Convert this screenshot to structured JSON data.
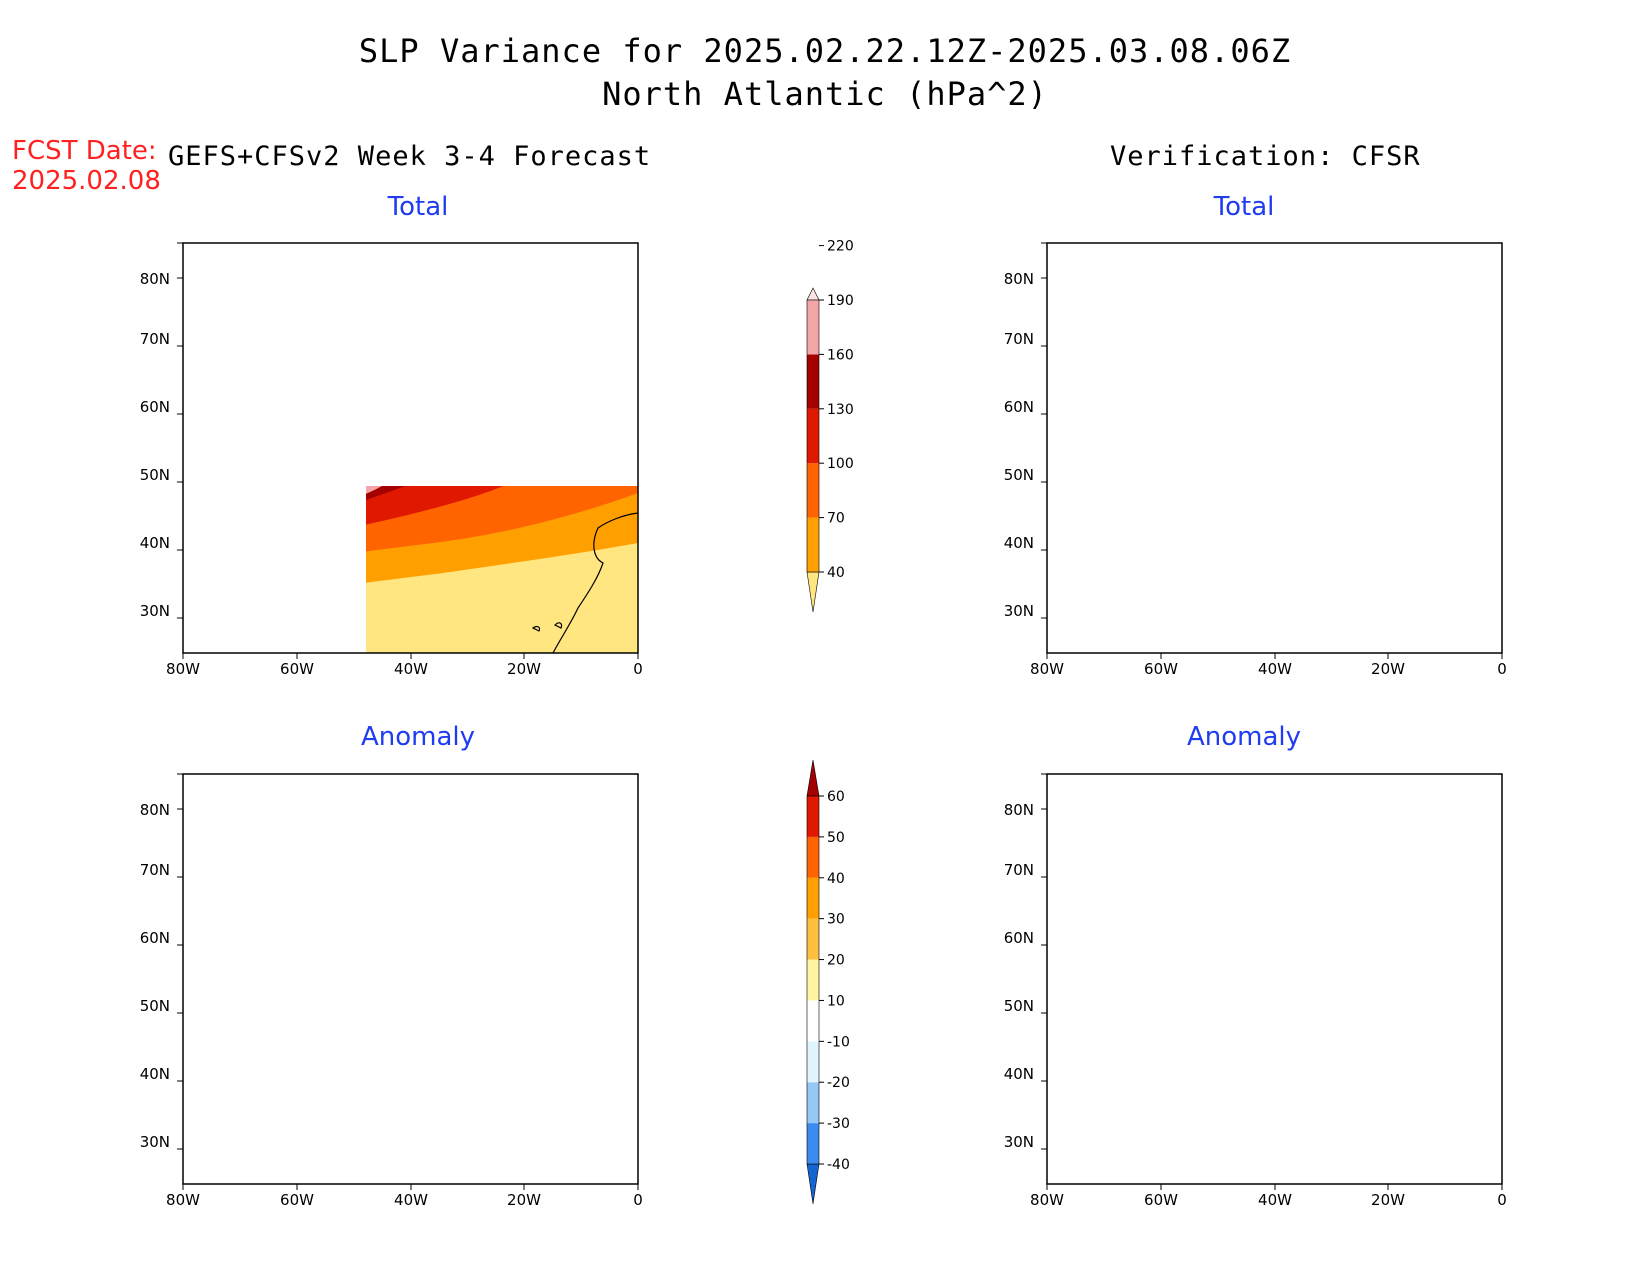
{
  "title_line1": "SLP Variance for 2025.02.22.12Z-2025.03.08.06Z",
  "title_line2": "North Atlantic (hPa^2)",
  "fcst_date_label": "FCST Date:",
  "fcst_date_value": "2025.02.08",
  "left_header": "GEFS+CFSv2 Week 3-4 Forecast",
  "right_header": "Verification: CFSR",
  "panels": {
    "fcst_total": {
      "title": "Total"
    },
    "verif_total": {
      "title": "Total"
    },
    "fcst_anom": {
      "title": "Anomaly"
    },
    "verif_anom": {
      "title": "Anomaly"
    }
  },
  "axes": {
    "lon_labels": [
      "80W",
      "60W",
      "40W",
      "20W",
      "0"
    ],
    "lat_labels": [
      "30N",
      "40N",
      "50N",
      "60N",
      "70N",
      "80N"
    ]
  },
  "colorbar_total": {
    "levels": [
      "40",
      "70",
      "100",
      "130",
      "160",
      "190",
      "220"
    ],
    "colors": [
      "#ffe680",
      "#ffa000",
      "#ff6400",
      "#e01800",
      "#a50000",
      "#f4a5a8",
      "#fde4e5"
    ]
  },
  "colorbar_anomaly": {
    "levels": [
      "-40",
      "-30",
      "-20",
      "-10",
      "10",
      "20",
      "30",
      "40",
      "50",
      "60"
    ],
    "colors": [
      "#1464d2",
      "#3c8cf0",
      "#96c8f5",
      "#e1f5ff",
      "#ffffff",
      "#fff5a0",
      "#ffc040",
      "#ffa000",
      "#ff6400",
      "#e01800",
      "#a50000"
    ]
  }
}
